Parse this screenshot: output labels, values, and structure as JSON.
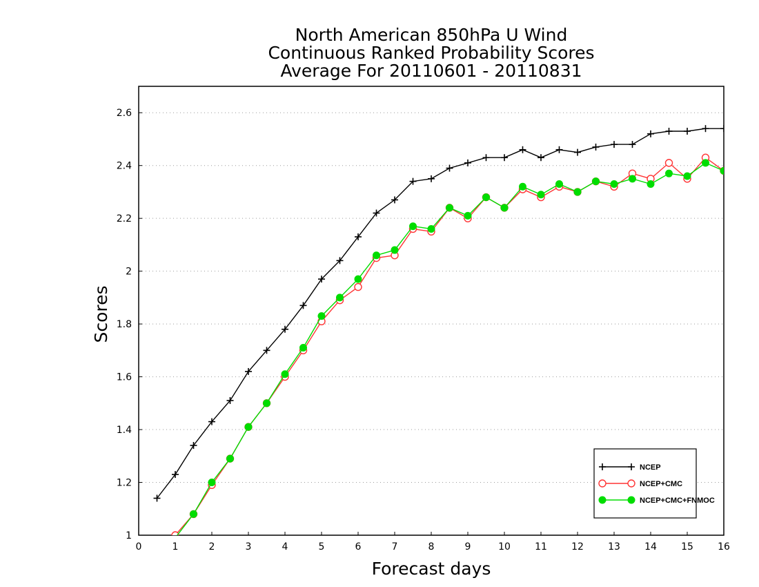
{
  "chart_data": {
    "type": "line",
    "title_lines": [
      "North American 850hPa U Wind",
      "Continuous Ranked Probability Scores",
      "Average For 20110601 - 20110831"
    ],
    "xlabel": "Forecast days",
    "ylabel": "Scores",
    "xlim": [
      0,
      16
    ],
    "ylim": [
      1,
      2.7
    ],
    "x_ticks": [
      "0",
      "1",
      "2",
      "3",
      "4",
      "5",
      "6",
      "7",
      "8",
      "9",
      "10",
      "11",
      "12",
      "13",
      "14",
      "15",
      "16"
    ],
    "y_ticks": [
      "1",
      "1.2",
      "1.4",
      "1.6",
      "1.8",
      "2",
      "2.2",
      "2.4",
      "2.6"
    ],
    "y_tick_values": [
      1,
      1.2,
      1.4,
      1.6,
      1.8,
      2.0,
      2.2,
      2.4,
      2.6
    ],
    "grid": "horizontal dotted",
    "legend_position": "bottom-right",
    "x": [
      0.5,
      1,
      1.5,
      2,
      2.5,
      3,
      3.5,
      4,
      4.5,
      5,
      5.5,
      6,
      6.5,
      7,
      7.5,
      8,
      8.5,
      9,
      9.5,
      10,
      10.5,
      11,
      11.5,
      12,
      12.5,
      13,
      13.5,
      14,
      14.5,
      15,
      15.5,
      16
    ],
    "series": [
      {
        "name": "NCEP",
        "color": "#000000",
        "marker": "plus",
        "values": [
          1.14,
          1.23,
          1.34,
          1.43,
          1.51,
          1.62,
          1.7,
          1.78,
          1.87,
          1.97,
          2.04,
          2.13,
          2.22,
          2.27,
          2.34,
          2.35,
          2.39,
          2.41,
          2.43,
          2.43,
          2.46,
          2.43,
          2.46,
          2.45,
          2.47,
          2.48,
          2.48,
          2.52,
          2.53,
          2.53,
          2.54,
          2.54
        ]
      },
      {
        "name": "NCEP+CMC",
        "color": "#ff3333",
        "marker": "open-circle",
        "values": [
          0.97,
          1.0,
          1.08,
          1.19,
          1.29,
          1.41,
          1.5,
          1.6,
          1.7,
          1.81,
          1.89,
          1.94,
          2.05,
          2.06,
          2.16,
          2.15,
          2.24,
          2.2,
          2.28,
          2.24,
          2.31,
          2.28,
          2.32,
          2.3,
          2.34,
          2.32,
          2.37,
          2.35,
          2.41,
          2.35,
          2.43,
          2.38
        ]
      },
      {
        "name": "NCEP+CMC+FNMOC",
        "color": "#00dd00",
        "marker": "filled-circle",
        "values": [
          0.96,
          0.99,
          1.08,
          1.2,
          1.29,
          1.41,
          1.5,
          1.61,
          1.71,
          1.83,
          1.9,
          1.97,
          2.06,
          2.08,
          2.17,
          2.16,
          2.24,
          2.21,
          2.28,
          2.24,
          2.32,
          2.29,
          2.33,
          2.3,
          2.34,
          2.33,
          2.35,
          2.33,
          2.37,
          2.36,
          2.41,
          2.38
        ]
      }
    ]
  }
}
